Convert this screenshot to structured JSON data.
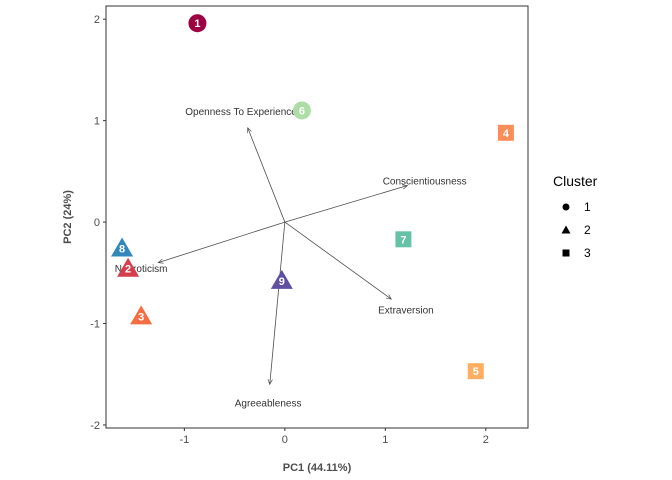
{
  "chart_data": {
    "type": "scatter",
    "subtype": "pca-biplot",
    "xlabel": "PC1 (44.11%)",
    "ylabel": "PC2 (24%)",
    "xlim": [
      -1.78,
      2.42
    ],
    "ylim": [
      -2.03,
      2.13
    ],
    "x_ticks": [
      -1,
      0,
      1,
      2
    ],
    "y_ticks": [
      -2,
      -1,
      0,
      1,
      2
    ],
    "grid": false,
    "legend": {
      "title": "Cluster",
      "placement": "right",
      "items": [
        {
          "label": "1",
          "shape": "circle"
        },
        {
          "label": "2",
          "shape": "triangle"
        },
        {
          "label": "3",
          "shape": "square"
        }
      ]
    },
    "points": [
      {
        "label": "1",
        "x": -0.87,
        "y": 1.96,
        "cluster": "1",
        "color": "#9E0142"
      },
      {
        "label": "2",
        "x": -1.56,
        "y": -0.46,
        "cluster": "2",
        "color": "#D53E4F"
      },
      {
        "label": "3",
        "x": -1.43,
        "y": -0.93,
        "cluster": "2",
        "color": "#F46D43"
      },
      {
        "label": "4",
        "x": 2.2,
        "y": 0.88,
        "cluster": "3",
        "color": "#FB8D59"
      },
      {
        "label": "5",
        "x": 1.9,
        "y": -1.47,
        "cluster": "3",
        "color": "#FDAE61"
      },
      {
        "label": "6",
        "x": 0.17,
        "y": 1.1,
        "cluster": "1",
        "color": "#ABDDA4"
      },
      {
        "label": "7",
        "x": 1.18,
        "y": -0.17,
        "cluster": "3",
        "color": "#66C2A5"
      },
      {
        "label": "8",
        "x": -1.62,
        "y": -0.26,
        "cluster": "2",
        "color": "#3288BD"
      },
      {
        "label": "9",
        "x": -0.03,
        "y": -0.58,
        "cluster": "2",
        "color": "#5E4FA2"
      }
    ],
    "loadings": [
      {
        "name": "Openness To Experience",
        "x": -0.37,
        "y": 0.93
      },
      {
        "name": "Conscientiousness",
        "x": 1.22,
        "y": 0.36
      },
      {
        "name": "Neuroticism",
        "x": -1.26,
        "y": -0.4
      },
      {
        "name": "Extraversion",
        "x": 1.06,
        "y": -0.76
      },
      {
        "name": "Agreeableness",
        "x": -0.15,
        "y": -1.6
      }
    ]
  }
}
